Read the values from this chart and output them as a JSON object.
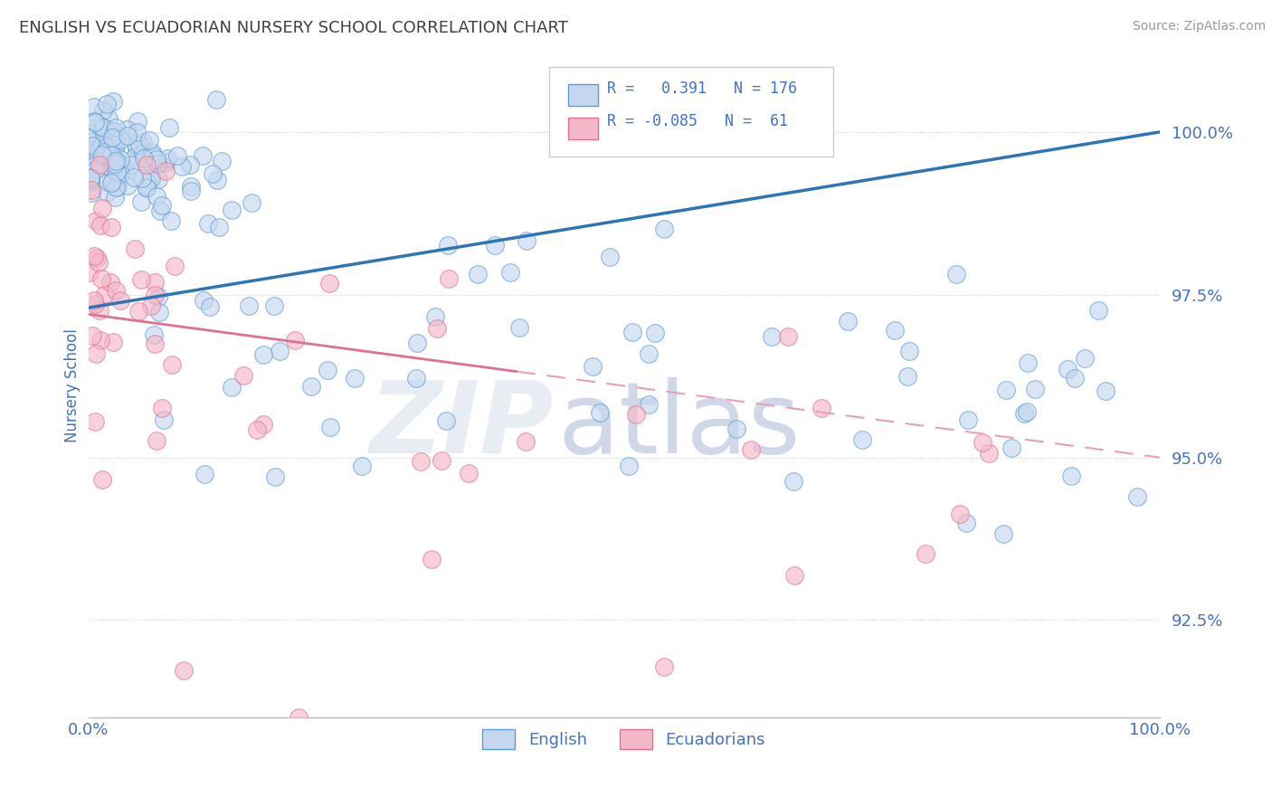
{
  "title": "ENGLISH VS ECUADORIAN NURSERY SCHOOL CORRELATION CHART",
  "source": "Source: ZipAtlas.com",
  "ylabel": "Nursery School",
  "xlim": [
    0.0,
    100.0
  ],
  "ylim": [
    91.0,
    101.2
  ],
  "yticks": [
    92.5,
    95.0,
    97.5,
    100.0
  ],
  "ytick_labels": [
    "92.5%",
    "95.0%",
    "97.5%",
    "100.0%"
  ],
  "english_R": 0.391,
  "english_N": 176,
  "ecuadorian_R": -0.085,
  "ecuadorian_N": 61,
  "english_fill": "#c5d8ef",
  "english_edge": "#5b9bd5",
  "ecuadorian_fill": "#f4b8c8",
  "ecuadorian_edge": "#e07090",
  "english_line_color": "#2e75b6",
  "ecuadorian_solid_color": "#e07090",
  "ecuadorian_dash_color": "#e8a0b4",
  "title_color": "#404040",
  "axis_color": "#4472c4",
  "grid_color": "#d0d0d0",
  "eng_trend_x0": 0,
  "eng_trend_y0": 97.3,
  "eng_trend_x1": 100,
  "eng_trend_y1": 100.0,
  "ecu_trend_x0": 0,
  "ecu_trend_y0": 97.2,
  "ecu_trend_x1": 100,
  "ecu_trend_y1": 95.0,
  "ecu_solid_end": 40
}
